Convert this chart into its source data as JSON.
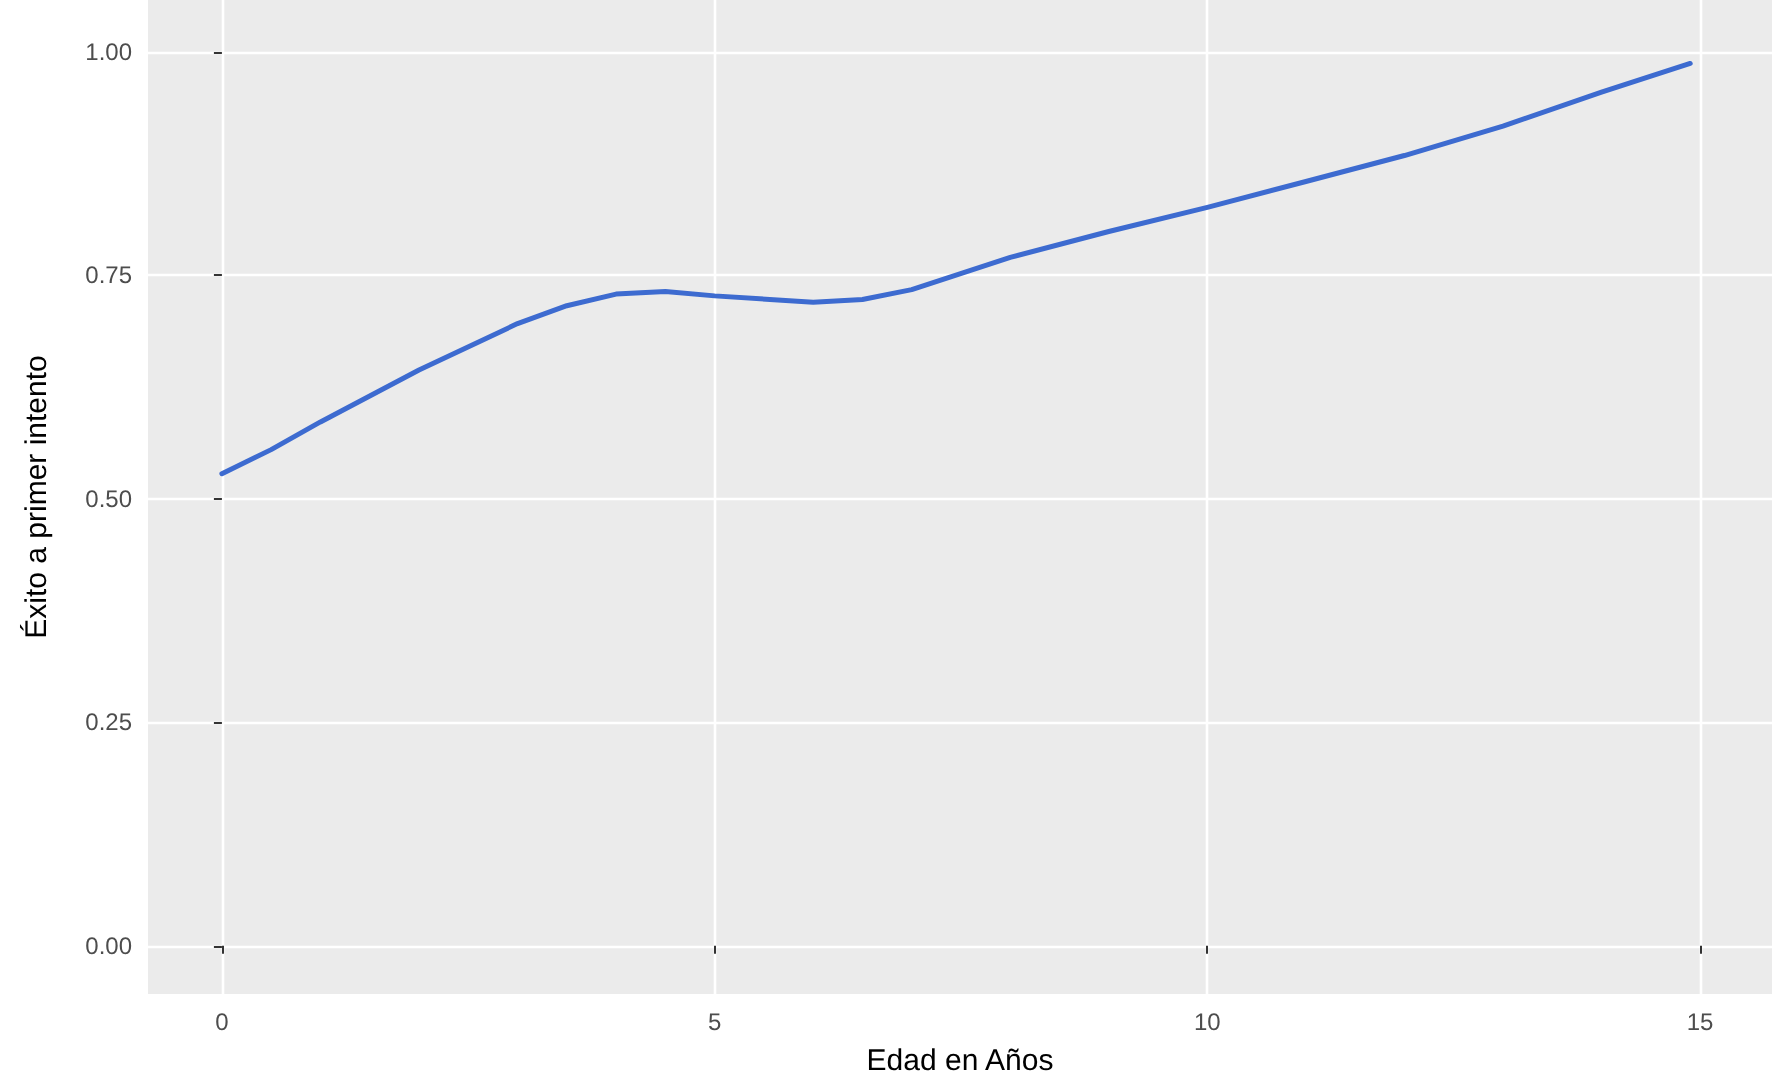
{
  "chart_data": {
    "type": "line",
    "xlabel": "Edad en Años",
    "ylabel": "Éxito a primer intento",
    "x": [
      0,
      0.5,
      1,
      2,
      3,
      3.5,
      4,
      4.5,
      5,
      6,
      6.5,
      7,
      8,
      9,
      10,
      11,
      12,
      13,
      14,
      14.9
    ],
    "series": [
      {
        "color": "#3d6bd0",
        "values": [
          0.528,
          0.555,
          0.586,
          0.644,
          0.696,
          0.716,
          0.729,
          0.732,
          0.727,
          0.72,
          0.723,
          0.734,
          0.77,
          0.799,
          0.826,
          0.855,
          0.884,
          0.917,
          0.955,
          0.987
        ]
      }
    ],
    "xlim": [
      -0.75,
      15.73
    ],
    "xticks": [
      0,
      5,
      10,
      15
    ],
    "ylim": [
      -0.054,
      1.058
    ],
    "yticks": [
      {
        "value": 0,
        "label": "0.00"
      },
      {
        "value": 0.25,
        "label": "0.25"
      },
      {
        "value": 0.5,
        "label": "0.50"
      },
      {
        "value": 0.75,
        "label": "0.75"
      },
      {
        "value": 1,
        "label": "1.00"
      }
    ],
    "grid": true,
    "marker": "none",
    "line_style": "solid"
  }
}
